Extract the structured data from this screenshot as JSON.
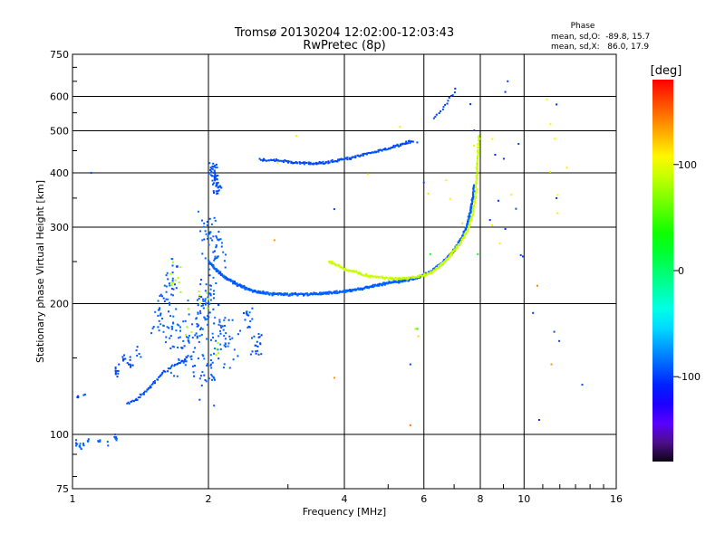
{
  "chart_data": {
    "type": "scatter",
    "title": "Tromsø 20130204 12:02:00-12:03:43",
    "subtitle": "RwPretec (8p)",
    "xlabel": "Frequency [MHz]",
    "ylabel": "Stationary phase Virtual Height [km]",
    "x_scale": "log",
    "y_scale": "log",
    "xlim": [
      1,
      16
    ],
    "ylim": [
      75,
      750
    ],
    "x_ticks": [
      1,
      2,
      4,
      6,
      8,
      10,
      16
    ],
    "x_tick_labels": [
      "1",
      "2",
      "4",
      "6",
      "8",
      "10",
      "16"
    ],
    "y_ticks": [
      75,
      100,
      200,
      300,
      400,
      500,
      600,
      750
    ],
    "y_tick_labels": [
      "75",
      "100",
      "200",
      "300",
      "400",
      "500",
      "600",
      "750"
    ],
    "grid": true,
    "stats": {
      "title": "Phase",
      "line_o": "mean, sd,O:  -89.8, 15.7",
      "line_x": "mean, sd,X:   86.0, 17.9"
    },
    "colorbar": {
      "label": "[deg]",
      "range": [
        -180,
        180
      ],
      "ticks": [
        100,
        0,
        -100
      ],
      "tick_labels": [
        "100",
        "0",
        "-100"
      ]
    },
    "series": [
      {
        "mode": "curve",
        "phase": -90,
        "density": 90,
        "points": [
          [
            2.0,
            250
          ],
          [
            2.1,
            237
          ],
          [
            2.2,
            228
          ],
          [
            2.35,
            220
          ],
          [
            2.5,
            214
          ],
          [
            2.7,
            211
          ],
          [
            3.0,
            210
          ],
          [
            3.4,
            210
          ],
          [
            3.8,
            212
          ],
          [
            4.2,
            215
          ],
          [
            4.6,
            219
          ],
          [
            5.0,
            223
          ],
          [
            5.4,
            226
          ],
          [
            5.8,
            230
          ],
          [
            6.2,
            237
          ],
          [
            6.6,
            248
          ],
          [
            7.0,
            265
          ],
          [
            7.3,
            285
          ],
          [
            7.5,
            305
          ],
          [
            7.6,
            325
          ],
          [
            7.7,
            350
          ],
          [
            7.75,
            375
          ]
        ]
      },
      {
        "mode": "curve",
        "phase": -95,
        "density": 50,
        "points": [
          [
            2.6,
            430
          ],
          [
            3.0,
            425
          ],
          [
            3.4,
            420
          ],
          [
            3.8,
            425
          ],
          [
            4.2,
            435
          ],
          [
            4.6,
            445
          ],
          [
            5.0,
            455
          ],
          [
            5.4,
            465
          ],
          [
            5.7,
            475
          ]
        ]
      },
      {
        "mode": "curve",
        "phase": 90,
        "density": 60,
        "points": [
          [
            3.7,
            250
          ],
          [
            4.0,
            240
          ],
          [
            4.4,
            233
          ],
          [
            4.8,
            230
          ],
          [
            5.2,
            228
          ],
          [
            5.6,
            229
          ],
          [
            6.0,
            232
          ],
          [
            6.4,
            240
          ],
          [
            6.8,
            255
          ],
          [
            7.2,
            275
          ],
          [
            7.5,
            295
          ],
          [
            7.7,
            320
          ],
          [
            7.8,
            350
          ],
          [
            7.85,
            390
          ],
          [
            7.9,
            440
          ],
          [
            7.95,
            490
          ]
        ]
      },
      {
        "mode": "curve",
        "phase": -100,
        "density": 16,
        "points": [
          [
            6.3,
            535
          ],
          [
            6.6,
            560
          ],
          [
            6.9,
            600
          ],
          [
            7.1,
            630
          ]
        ]
      },
      {
        "mode": "cluster",
        "phase": -95,
        "jitter": 0.06,
        "count": 60,
        "points": [
          [
            2.07,
            390
          ],
          [
            2.1,
            370
          ],
          [
            2.05,
            410
          ]
        ]
      },
      {
        "mode": "cluster",
        "phase": -90,
        "jitter": 0.17,
        "count": 260,
        "points": [
          [
            2.0,
            180
          ],
          [
            1.85,
            165
          ],
          [
            1.75,
            150
          ],
          [
            2.05,
            145
          ],
          [
            2.15,
            175
          ],
          [
            2.0,
            210
          ],
          [
            1.9,
            195
          ],
          [
            2.25,
            160
          ],
          [
            2.1,
            260
          ],
          [
            1.7,
            175
          ],
          [
            2.0,
            290
          ],
          [
            1.95,
            135
          ]
        ]
      },
      {
        "mode": "cluster",
        "phase": -90,
        "jitter": 0.12,
        "count": 50,
        "points": [
          [
            1.6,
            200
          ],
          [
            1.55,
            185
          ],
          [
            1.65,
            220
          ],
          [
            1.7,
            240
          ]
        ]
      },
      {
        "mode": "cluster",
        "phase": 80,
        "jitter": 0.12,
        "count": 24,
        "points": [
          [
            1.95,
            200
          ],
          [
            1.8,
            175
          ],
          [
            2.1,
            155
          ],
          [
            1.7,
            230
          ]
        ]
      },
      {
        "mode": "cluster",
        "phase": -95,
        "jitter": 0.08,
        "count": 35,
        "points": [
          [
            2.5,
            175
          ],
          [
            2.6,
            165
          ],
          [
            2.45,
            190
          ],
          [
            2.55,
            155
          ]
        ]
      },
      {
        "mode": "curve",
        "phase": -95,
        "density": 30,
        "points": [
          [
            1.32,
            118
          ],
          [
            1.38,
            120
          ],
          [
            1.45,
            125
          ],
          [
            1.52,
            132
          ],
          [
            1.6,
            140
          ],
          [
            1.7,
            145
          ],
          [
            1.8,
            150
          ]
        ]
      },
      {
        "mode": "cluster",
        "phase": -95,
        "jitter": 0.05,
        "count": 30,
        "points": [
          [
            1.25,
            140
          ],
          [
            1.3,
            150
          ],
          [
            1.35,
            145
          ],
          [
            1.4,
            155
          ]
        ]
      },
      {
        "mode": "cluster",
        "phase": -90,
        "jitter": 0.025,
        "count": 18,
        "points": [
          [
            1.02,
            96
          ],
          [
            1.04,
            94
          ],
          [
            1.06,
            95
          ],
          [
            1.08,
            97
          ]
        ]
      },
      {
        "mode": "cluster",
        "phase": -90,
        "jitter": 0.025,
        "count": 14,
        "points": [
          [
            1.15,
            97
          ],
          [
            1.2,
            95
          ],
          [
            1.25,
            98
          ]
        ]
      },
      {
        "mode": "cluster",
        "phase": -100,
        "jitter": 0.015,
        "count": 8,
        "points": [
          [
            1.03,
            122
          ],
          [
            1.06,
            124
          ]
        ]
      },
      {
        "mode": "cluster",
        "phase": -100,
        "jitter": 0.4,
        "count": 16,
        "points": [
          [
            9.0,
            300
          ],
          [
            11.0,
            400
          ],
          [
            10.5,
            200
          ],
          [
            12.0,
            150
          ],
          [
            8.5,
            500
          ]
        ]
      },
      {
        "mode": "cluster",
        "phase": 110,
        "jitter": 0.4,
        "count": 22,
        "points": [
          [
            8.2,
            460
          ],
          [
            8.5,
            350
          ],
          [
            11.5,
            390
          ],
          [
            12.0,
            500
          ],
          [
            5.8,
            170
          ],
          [
            4.0,
            160
          ],
          [
            6.2,
            380
          ],
          [
            3.0,
            410
          ],
          [
            4.8,
            420
          ]
        ]
      },
      {
        "mode": "point",
        "phase": -100,
        "points": [
          [
            1.1,
            400
          ],
          [
            9.2,
            650
          ],
          [
            11.8,
            575
          ],
          [
            10.8,
            108
          ],
          [
            11.8,
            350
          ],
          [
            3.8,
            330
          ],
          [
            6.0,
            380
          ],
          [
            5.6,
            145
          ],
          [
            5.8,
            470
          ]
        ]
      },
      {
        "mode": "point",
        "phase": 140,
        "points": [
          [
            10.7,
            220
          ],
          [
            11.5,
            145
          ],
          [
            5.6,
            105
          ],
          [
            3.8,
            135
          ],
          [
            2.8,
            280
          ]
        ]
      },
      {
        "mode": "point",
        "phase": 30,
        "points": [
          [
            6.2,
            260
          ],
          [
            7.9,
            260
          ],
          [
            5.8,
            175
          ]
        ]
      }
    ]
  }
}
